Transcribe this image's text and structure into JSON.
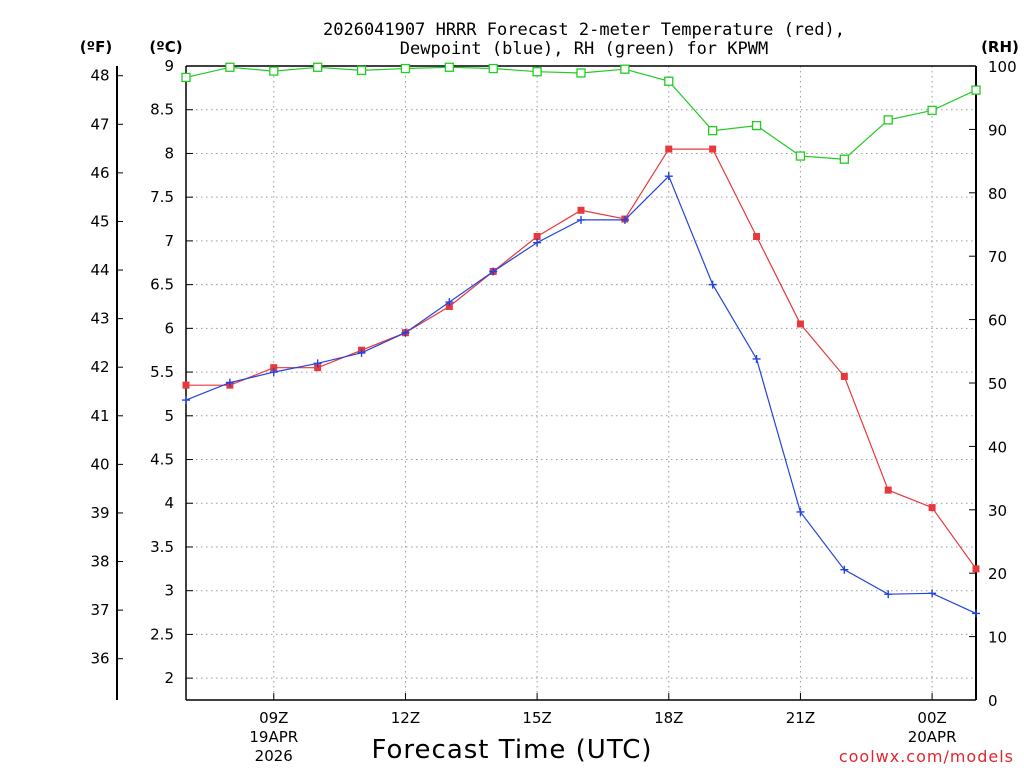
{
  "chart_data": {
    "type": "line",
    "title_line1": "2026041907 HRRR Forecast 2-meter Temperature (red),",
    "title_line2": "Dewpoint (blue), RH (green) for KPWM",
    "xlabel": "Forecast Time (UTC)",
    "credit": "coolwx.com/models",
    "axes": {
      "fahrenheit_label": "(ºF)",
      "celsius_label": "(ºC)",
      "rh_label": "(RH)",
      "celsius_range": [
        1.75,
        9.0
      ],
      "rh_range": [
        0,
        100
      ],
      "celsius_ticks": [
        "9",
        "8.5",
        "8",
        "7.5",
        "7",
        "6.5",
        "6",
        "5.5",
        "5",
        "4.5",
        "4",
        "3.5",
        "3",
        "2.5",
        "2"
      ],
      "fahrenheit_ticks": [
        "48",
        "47",
        "46",
        "45",
        "44",
        "43",
        "42",
        "41",
        "40",
        "39",
        "38",
        "37",
        "36"
      ],
      "rh_ticks": [
        "100",
        "90",
        "80",
        "70",
        "60",
        "50",
        "40",
        "30",
        "20",
        "10",
        "0"
      ]
    },
    "x_hours": [
      7,
      8,
      9,
      10,
      11,
      12,
      13,
      14,
      15,
      16,
      17,
      18,
      19,
      20,
      21,
      22,
      23,
      24,
      25
    ],
    "x_ticks": [
      {
        "label": "09Z",
        "sub1": "19APR",
        "sub2": "2026"
      },
      {
        "label": "12Z",
        "sub1": "",
        "sub2": ""
      },
      {
        "label": "15Z",
        "sub1": "",
        "sub2": ""
      },
      {
        "label": "18Z",
        "sub1": "",
        "sub2": ""
      },
      {
        "label": "21Z",
        "sub1": "",
        "sub2": ""
      },
      {
        "label": "00Z",
        "sub1": "20APR",
        "sub2": ""
      }
    ],
    "series": [
      {
        "name": "Temperature",
        "units": "degC",
        "color": "#e8383d",
        "marker": "filled-square",
        "values": [
          5.35,
          5.35,
          5.55,
          5.55,
          5.75,
          5.95,
          6.25,
          6.65,
          7.05,
          7.35,
          7.25,
          8.05,
          8.05,
          7.05,
          6.05,
          5.45,
          4.15,
          3.95,
          3.25
        ]
      },
      {
        "name": "Dewpoint",
        "units": "degC",
        "color": "#2244dd",
        "marker": "plus",
        "values": [
          5.18,
          5.38,
          5.5,
          5.6,
          5.72,
          5.95,
          6.3,
          6.65,
          6.98,
          7.24,
          7.24,
          7.74,
          6.5,
          5.65,
          3.9,
          3.24,
          2.96,
          2.97,
          2.74
        ]
      },
      {
        "name": "RH",
        "units": "percent",
        "color": "#22cc22",
        "marker": "open-square",
        "values": [
          98.2,
          99.8,
          99.2,
          99.8,
          99.3,
          99.6,
          99.8,
          99.6,
          99.1,
          98.9,
          99.5,
          97.6,
          89.8,
          90.6,
          85.8,
          85.3,
          91.5,
          93.0,
          96.2
        ]
      }
    ]
  }
}
